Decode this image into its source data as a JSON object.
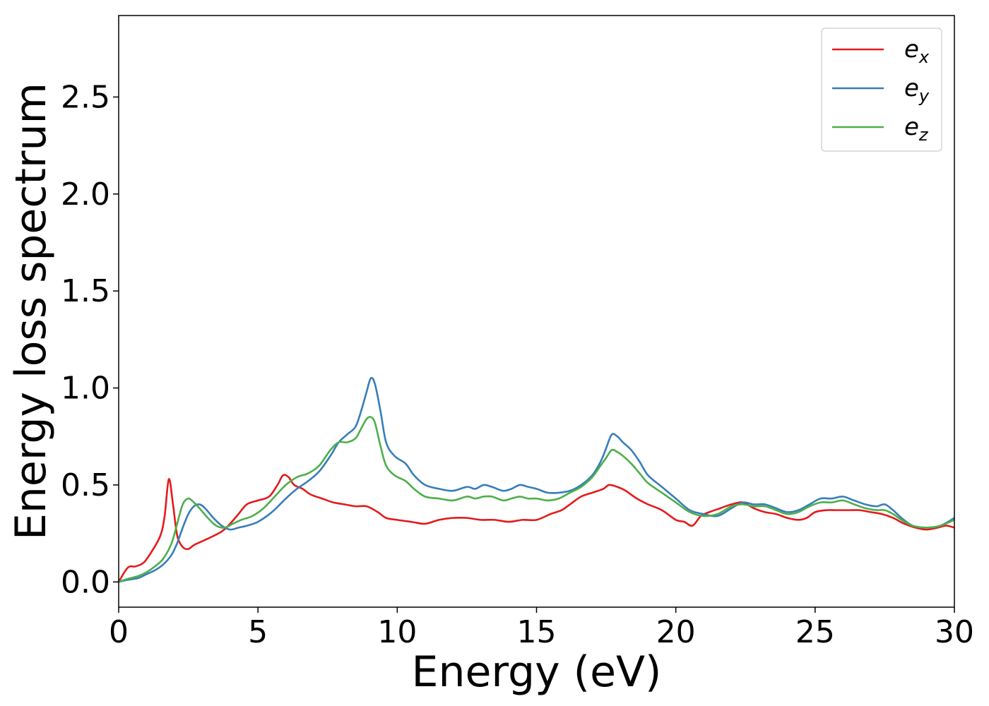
{
  "chart_data": {
    "type": "line",
    "xlabel": "Energy (eV)",
    "ylabel": "Energy loss spectrum",
    "xlim": [
      0,
      30
    ],
    "ylim": [
      -0.13,
      2.92
    ],
    "xticks": [
      0,
      5,
      10,
      15,
      20,
      25,
      30
    ],
    "yticks": [
      0.0,
      0.5,
      1.0,
      1.5,
      2.0,
      2.5
    ],
    "grid": false,
    "legend_position": "top-right",
    "series": [
      {
        "name": "e",
        "sub": "x",
        "color": "#e41a1c",
        "x": [
          0,
          0.25,
          0.4,
          0.6,
          0.9,
          1.2,
          1.5,
          1.65,
          1.8,
          1.95,
          2.1,
          2.3,
          2.5,
          2.7,
          3.0,
          3.3,
          3.7,
          4.0,
          4.3,
          4.6,
          5.0,
          5.4,
          5.7,
          5.9,
          6.1,
          6.3,
          6.6,
          6.9,
          7.3,
          7.7,
          8.1,
          8.5,
          8.9,
          9.3,
          9.6,
          10.0,
          10.5,
          11.0,
          11.5,
          12.0,
          12.5,
          13.0,
          13.5,
          14.0,
          14.5,
          15.0,
          15.5,
          15.9,
          16.2,
          16.6,
          17.0,
          17.4,
          17.6,
          17.9,
          18.2,
          18.6,
          19.0,
          19.5,
          20.0,
          20.3,
          20.6,
          20.9,
          21.2,
          21.6,
          22.0,
          22.4,
          22.8,
          23.2,
          23.6,
          24.0,
          24.4,
          24.7,
          25.0,
          25.4,
          25.8,
          26.2,
          26.6,
          27.0,
          27.4,
          27.8,
          28.2,
          28.6,
          29.0,
          29.4,
          29.7,
          30.0
        ],
        "y": [
          0.0,
          0.06,
          0.08,
          0.08,
          0.1,
          0.16,
          0.24,
          0.34,
          0.53,
          0.4,
          0.24,
          0.18,
          0.17,
          0.19,
          0.21,
          0.23,
          0.26,
          0.3,
          0.35,
          0.4,
          0.42,
          0.44,
          0.5,
          0.55,
          0.54,
          0.5,
          0.48,
          0.45,
          0.43,
          0.41,
          0.4,
          0.39,
          0.39,
          0.36,
          0.33,
          0.32,
          0.31,
          0.3,
          0.32,
          0.33,
          0.33,
          0.32,
          0.32,
          0.31,
          0.32,
          0.32,
          0.35,
          0.37,
          0.4,
          0.44,
          0.46,
          0.48,
          0.5,
          0.49,
          0.47,
          0.43,
          0.4,
          0.37,
          0.32,
          0.31,
          0.29,
          0.34,
          0.36,
          0.38,
          0.4,
          0.41,
          0.38,
          0.36,
          0.35,
          0.33,
          0.32,
          0.33,
          0.36,
          0.37,
          0.37,
          0.37,
          0.37,
          0.36,
          0.35,
          0.33,
          0.3,
          0.28,
          0.27,
          0.28,
          0.29,
          0.28
        ]
      },
      {
        "name": "e",
        "sub": "y",
        "color": "#377eb8",
        "x": [
          0,
          0.3,
          0.7,
          1.0,
          1.3,
          1.6,
          1.9,
          2.1,
          2.3,
          2.5,
          2.7,
          2.9,
          3.1,
          3.4,
          3.7,
          4.0,
          4.3,
          4.6,
          5.0,
          5.5,
          6.0,
          6.4,
          6.8,
          7.2,
          7.6,
          7.9,
          8.2,
          8.5,
          8.7,
          8.9,
          9.05,
          9.2,
          9.4,
          9.6,
          9.9,
          10.3,
          10.6,
          11.0,
          11.5,
          12.0,
          12.5,
          12.8,
          13.1,
          13.4,
          13.8,
          14.1,
          14.4,
          14.7,
          15.0,
          15.4,
          15.8,
          16.2,
          16.6,
          17.0,
          17.3,
          17.5,
          17.7,
          17.9,
          18.1,
          18.4,
          18.7,
          19.0,
          19.5,
          20.0,
          20.5,
          21.0,
          21.5,
          22.0,
          22.4,
          22.8,
          23.2,
          23.6,
          24.0,
          24.4,
          24.8,
          25.2,
          25.6,
          26.0,
          26.4,
          26.8,
          27.2,
          27.5,
          27.8,
          28.1,
          28.5,
          29.0,
          29.5,
          30.0
        ],
        "y": [
          0.0,
          0.01,
          0.02,
          0.04,
          0.06,
          0.09,
          0.14,
          0.2,
          0.28,
          0.35,
          0.39,
          0.4,
          0.38,
          0.33,
          0.29,
          0.27,
          0.28,
          0.29,
          0.31,
          0.36,
          0.43,
          0.48,
          0.52,
          0.57,
          0.65,
          0.72,
          0.76,
          0.8,
          0.88,
          0.98,
          1.05,
          1.02,
          0.88,
          0.72,
          0.65,
          0.61,
          0.55,
          0.5,
          0.48,
          0.47,
          0.49,
          0.48,
          0.5,
          0.49,
          0.47,
          0.48,
          0.5,
          0.49,
          0.48,
          0.46,
          0.46,
          0.47,
          0.5,
          0.55,
          0.62,
          0.69,
          0.76,
          0.75,
          0.72,
          0.68,
          0.62,
          0.55,
          0.49,
          0.43,
          0.37,
          0.35,
          0.34,
          0.38,
          0.41,
          0.4,
          0.4,
          0.38,
          0.36,
          0.37,
          0.4,
          0.43,
          0.43,
          0.44,
          0.42,
          0.4,
          0.39,
          0.4,
          0.37,
          0.33,
          0.29,
          0.28,
          0.29,
          0.33
        ]
      },
      {
        "name": "e",
        "sub": "z",
        "color": "#4daf4a",
        "x": [
          0,
          0.3,
          0.7,
          1.0,
          1.3,
          1.6,
          1.9,
          2.1,
          2.3,
          2.5,
          2.7,
          2.9,
          3.2,
          3.5,
          3.8,
          4.1,
          4.4,
          4.8,
          5.2,
          5.6,
          6.0,
          6.4,
          6.8,
          7.2,
          7.6,
          7.9,
          8.2,
          8.5,
          8.7,
          8.9,
          9.05,
          9.2,
          9.4,
          9.6,
          9.9,
          10.3,
          10.6,
          11.0,
          11.5,
          12.0,
          12.5,
          12.8,
          13.1,
          13.4,
          13.8,
          14.1,
          14.4,
          14.7,
          15.0,
          15.4,
          15.8,
          16.2,
          16.6,
          17.0,
          17.3,
          17.5,
          17.7,
          17.9,
          18.1,
          18.4,
          18.7,
          19.0,
          19.5,
          20.0,
          20.5,
          21.0,
          21.5,
          22.0,
          22.4,
          22.8,
          23.2,
          23.6,
          24.0,
          24.4,
          24.8,
          25.2,
          25.6,
          26.0,
          26.4,
          26.8,
          27.2,
          27.5,
          27.8,
          28.1,
          28.5,
          29.0,
          29.5,
          30.0
        ],
        "y": [
          0.0,
          0.015,
          0.03,
          0.05,
          0.08,
          0.12,
          0.2,
          0.3,
          0.4,
          0.43,
          0.41,
          0.38,
          0.33,
          0.29,
          0.28,
          0.3,
          0.32,
          0.34,
          0.38,
          0.44,
          0.5,
          0.54,
          0.56,
          0.6,
          0.68,
          0.72,
          0.72,
          0.74,
          0.79,
          0.84,
          0.85,
          0.82,
          0.7,
          0.6,
          0.55,
          0.52,
          0.48,
          0.44,
          0.43,
          0.42,
          0.44,
          0.43,
          0.44,
          0.44,
          0.42,
          0.43,
          0.44,
          0.43,
          0.43,
          0.42,
          0.43,
          0.46,
          0.49,
          0.54,
          0.6,
          0.64,
          0.68,
          0.67,
          0.65,
          0.61,
          0.56,
          0.51,
          0.46,
          0.41,
          0.36,
          0.34,
          0.35,
          0.39,
          0.4,
          0.39,
          0.39,
          0.37,
          0.35,
          0.36,
          0.39,
          0.41,
          0.41,
          0.42,
          0.4,
          0.38,
          0.37,
          0.37,
          0.35,
          0.32,
          0.29,
          0.28,
          0.29,
          0.32
        ]
      }
    ]
  }
}
